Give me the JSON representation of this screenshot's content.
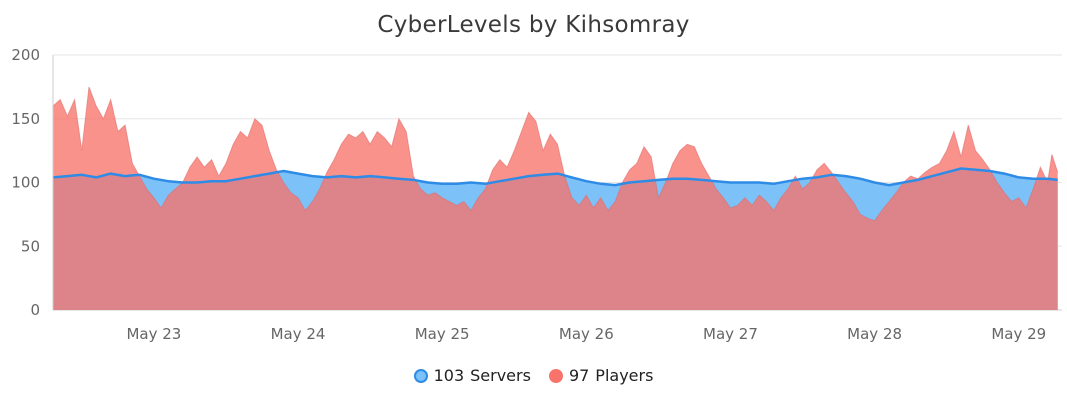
{
  "chart_data": {
    "type": "area",
    "title": "CyberLevels by Kihsomray",
    "ylim": [
      0,
      200
    ],
    "yticks": [
      0,
      50,
      100,
      150,
      200
    ],
    "xlim": [
      0,
      7
    ],
    "xticks": [
      {
        "x": 0.7,
        "label": "May 23"
      },
      {
        "x": 1.7,
        "label": "May 24"
      },
      {
        "x": 2.7,
        "label": "May 25"
      },
      {
        "x": 3.7,
        "label": "May 26"
      },
      {
        "x": 4.7,
        "label": "May 27"
      },
      {
        "x": 5.7,
        "label": "May 28"
      },
      {
        "x": 6.7,
        "label": "May 29"
      }
    ],
    "grid": true,
    "legend_position": "bottom",
    "series": [
      {
        "name": "Servers",
        "legend_count": "103",
        "fill": "#7cc1f7",
        "stroke": "#2e8be6",
        "points": [
          [
            0,
            104
          ],
          [
            0.1,
            105
          ],
          [
            0.2,
            106
          ],
          [
            0.3,
            104
          ],
          [
            0.4,
            107
          ],
          [
            0.5,
            105
          ],
          [
            0.6,
            106
          ],
          [
            0.7,
            103
          ],
          [
            0.8,
            101
          ],
          [
            0.9,
            100
          ],
          [
            1.0,
            100
          ],
          [
            1.1,
            101
          ],
          [
            1.2,
            101
          ],
          [
            1.3,
            103
          ],
          [
            1.4,
            105
          ],
          [
            1.5,
            107
          ],
          [
            1.6,
            109
          ],
          [
            1.7,
            107
          ],
          [
            1.8,
            105
          ],
          [
            1.9,
            104
          ],
          [
            2.0,
            105
          ],
          [
            2.1,
            104
          ],
          [
            2.2,
            105
          ],
          [
            2.3,
            104
          ],
          [
            2.4,
            103
          ],
          [
            2.5,
            102
          ],
          [
            2.6,
            100
          ],
          [
            2.7,
            99
          ],
          [
            2.8,
            99
          ],
          [
            2.9,
            100
          ],
          [
            3.0,
            99
          ],
          [
            3.1,
            101
          ],
          [
            3.2,
            103
          ],
          [
            3.3,
            105
          ],
          [
            3.4,
            106
          ],
          [
            3.5,
            107
          ],
          [
            3.6,
            104
          ],
          [
            3.7,
            101
          ],
          [
            3.8,
            99
          ],
          [
            3.9,
            98
          ],
          [
            4.0,
            100
          ],
          [
            4.1,
            101
          ],
          [
            4.2,
            102
          ],
          [
            4.3,
            103
          ],
          [
            4.4,
            103
          ],
          [
            4.5,
            102
          ],
          [
            4.6,
            101
          ],
          [
            4.7,
            100
          ],
          [
            4.8,
            100
          ],
          [
            4.9,
            100
          ],
          [
            5.0,
            99
          ],
          [
            5.1,
            101
          ],
          [
            5.2,
            103
          ],
          [
            5.3,
            104
          ],
          [
            5.4,
            106
          ],
          [
            5.5,
            105
          ],
          [
            5.6,
            103
          ],
          [
            5.7,
            100
          ],
          [
            5.8,
            98
          ],
          [
            5.9,
            100
          ],
          [
            6.0,
            102
          ],
          [
            6.1,
            105
          ],
          [
            6.2,
            108
          ],
          [
            6.3,
            111
          ],
          [
            6.4,
            110
          ],
          [
            6.5,
            109
          ],
          [
            6.6,
            107
          ],
          [
            6.7,
            104
          ],
          [
            6.8,
            103
          ],
          [
            6.9,
            103
          ],
          [
            6.97,
            102
          ]
        ]
      },
      {
        "name": "Players",
        "legend_count": "97",
        "fill": "#f8736b",
        "stroke": "#e06c6c",
        "points": [
          [
            0,
            160
          ],
          [
            0.05,
            165
          ],
          [
            0.1,
            152
          ],
          [
            0.15,
            165
          ],
          [
            0.2,
            125
          ],
          [
            0.25,
            175
          ],
          [
            0.3,
            160
          ],
          [
            0.35,
            150
          ],
          [
            0.4,
            165
          ],
          [
            0.45,
            140
          ],
          [
            0.5,
            145
          ],
          [
            0.55,
            115
          ],
          [
            0.6,
            105
          ],
          [
            0.65,
            95
          ],
          [
            0.7,
            88
          ],
          [
            0.75,
            80
          ],
          [
            0.8,
            90
          ],
          [
            0.85,
            95
          ],
          [
            0.9,
            100
          ],
          [
            0.95,
            112
          ],
          [
            1.0,
            120
          ],
          [
            1.05,
            112
          ],
          [
            1.1,
            118
          ],
          [
            1.15,
            105
          ],
          [
            1.2,
            115
          ],
          [
            1.25,
            130
          ],
          [
            1.3,
            140
          ],
          [
            1.35,
            135
          ],
          [
            1.4,
            150
          ],
          [
            1.45,
            145
          ],
          [
            1.5,
            125
          ],
          [
            1.55,
            110
          ],
          [
            1.6,
            100
          ],
          [
            1.65,
            92
          ],
          [
            1.7,
            88
          ],
          [
            1.75,
            78
          ],
          [
            1.8,
            85
          ],
          [
            1.85,
            95
          ],
          [
            1.9,
            108
          ],
          [
            1.95,
            118
          ],
          [
            2.0,
            130
          ],
          [
            2.05,
            138
          ],
          [
            2.1,
            135
          ],
          [
            2.15,
            140
          ],
          [
            2.2,
            130
          ],
          [
            2.25,
            140
          ],
          [
            2.3,
            135
          ],
          [
            2.35,
            128
          ],
          [
            2.4,
            150
          ],
          [
            2.45,
            140
          ],
          [
            2.5,
            105
          ],
          [
            2.55,
            95
          ],
          [
            2.6,
            90
          ],
          [
            2.65,
            92
          ],
          [
            2.7,
            88
          ],
          [
            2.75,
            85
          ],
          [
            2.8,
            82
          ],
          [
            2.85,
            85
          ],
          [
            2.9,
            78
          ],
          [
            2.95,
            88
          ],
          [
            3.0,
            95
          ],
          [
            3.05,
            110
          ],
          [
            3.1,
            118
          ],
          [
            3.15,
            112
          ],
          [
            3.2,
            125
          ],
          [
            3.25,
            140
          ],
          [
            3.3,
            155
          ],
          [
            3.35,
            148
          ],
          [
            3.4,
            125
          ],
          [
            3.45,
            138
          ],
          [
            3.5,
            130
          ],
          [
            3.55,
            105
          ],
          [
            3.6,
            88
          ],
          [
            3.65,
            82
          ],
          [
            3.7,
            90
          ],
          [
            3.75,
            80
          ],
          [
            3.8,
            88
          ],
          [
            3.85,
            78
          ],
          [
            3.9,
            85
          ],
          [
            3.95,
            100
          ],
          [
            4.0,
            110
          ],
          [
            4.05,
            115
          ],
          [
            4.1,
            128
          ],
          [
            4.15,
            120
          ],
          [
            4.2,
            88
          ],
          [
            4.25,
            100
          ],
          [
            4.3,
            115
          ],
          [
            4.35,
            125
          ],
          [
            4.4,
            130
          ],
          [
            4.45,
            128
          ],
          [
            4.5,
            115
          ],
          [
            4.55,
            105
          ],
          [
            4.6,
            95
          ],
          [
            4.65,
            88
          ],
          [
            4.7,
            80
          ],
          [
            4.75,
            82
          ],
          [
            4.8,
            88
          ],
          [
            4.85,
            82
          ],
          [
            4.9,
            90
          ],
          [
            4.95,
            85
          ],
          [
            5.0,
            78
          ],
          [
            5.05,
            88
          ],
          [
            5.1,
            95
          ],
          [
            5.15,
            105
          ],
          [
            5.2,
            95
          ],
          [
            5.25,
            100
          ],
          [
            5.3,
            110
          ],
          [
            5.35,
            115
          ],
          [
            5.4,
            108
          ],
          [
            5.45,
            100
          ],
          [
            5.5,
            92
          ],
          [
            5.55,
            85
          ],
          [
            5.6,
            75
          ],
          [
            5.65,
            72
          ],
          [
            5.7,
            70
          ],
          [
            5.75,
            78
          ],
          [
            5.8,
            85
          ],
          [
            5.85,
            92
          ],
          [
            5.9,
            100
          ],
          [
            5.95,
            105
          ],
          [
            6.0,
            103
          ],
          [
            6.05,
            108
          ],
          [
            6.1,
            112
          ],
          [
            6.15,
            115
          ],
          [
            6.2,
            125
          ],
          [
            6.25,
            140
          ],
          [
            6.3,
            120
          ],
          [
            6.35,
            145
          ],
          [
            6.4,
            125
          ],
          [
            6.45,
            118
          ],
          [
            6.5,
            110
          ],
          [
            6.55,
            100
          ],
          [
            6.6,
            92
          ],
          [
            6.65,
            85
          ],
          [
            6.7,
            88
          ],
          [
            6.75,
            80
          ],
          [
            6.8,
            95
          ],
          [
            6.85,
            112
          ],
          [
            6.9,
            100
          ],
          [
            6.93,
            122
          ],
          [
            6.97,
            108
          ]
        ]
      }
    ]
  }
}
